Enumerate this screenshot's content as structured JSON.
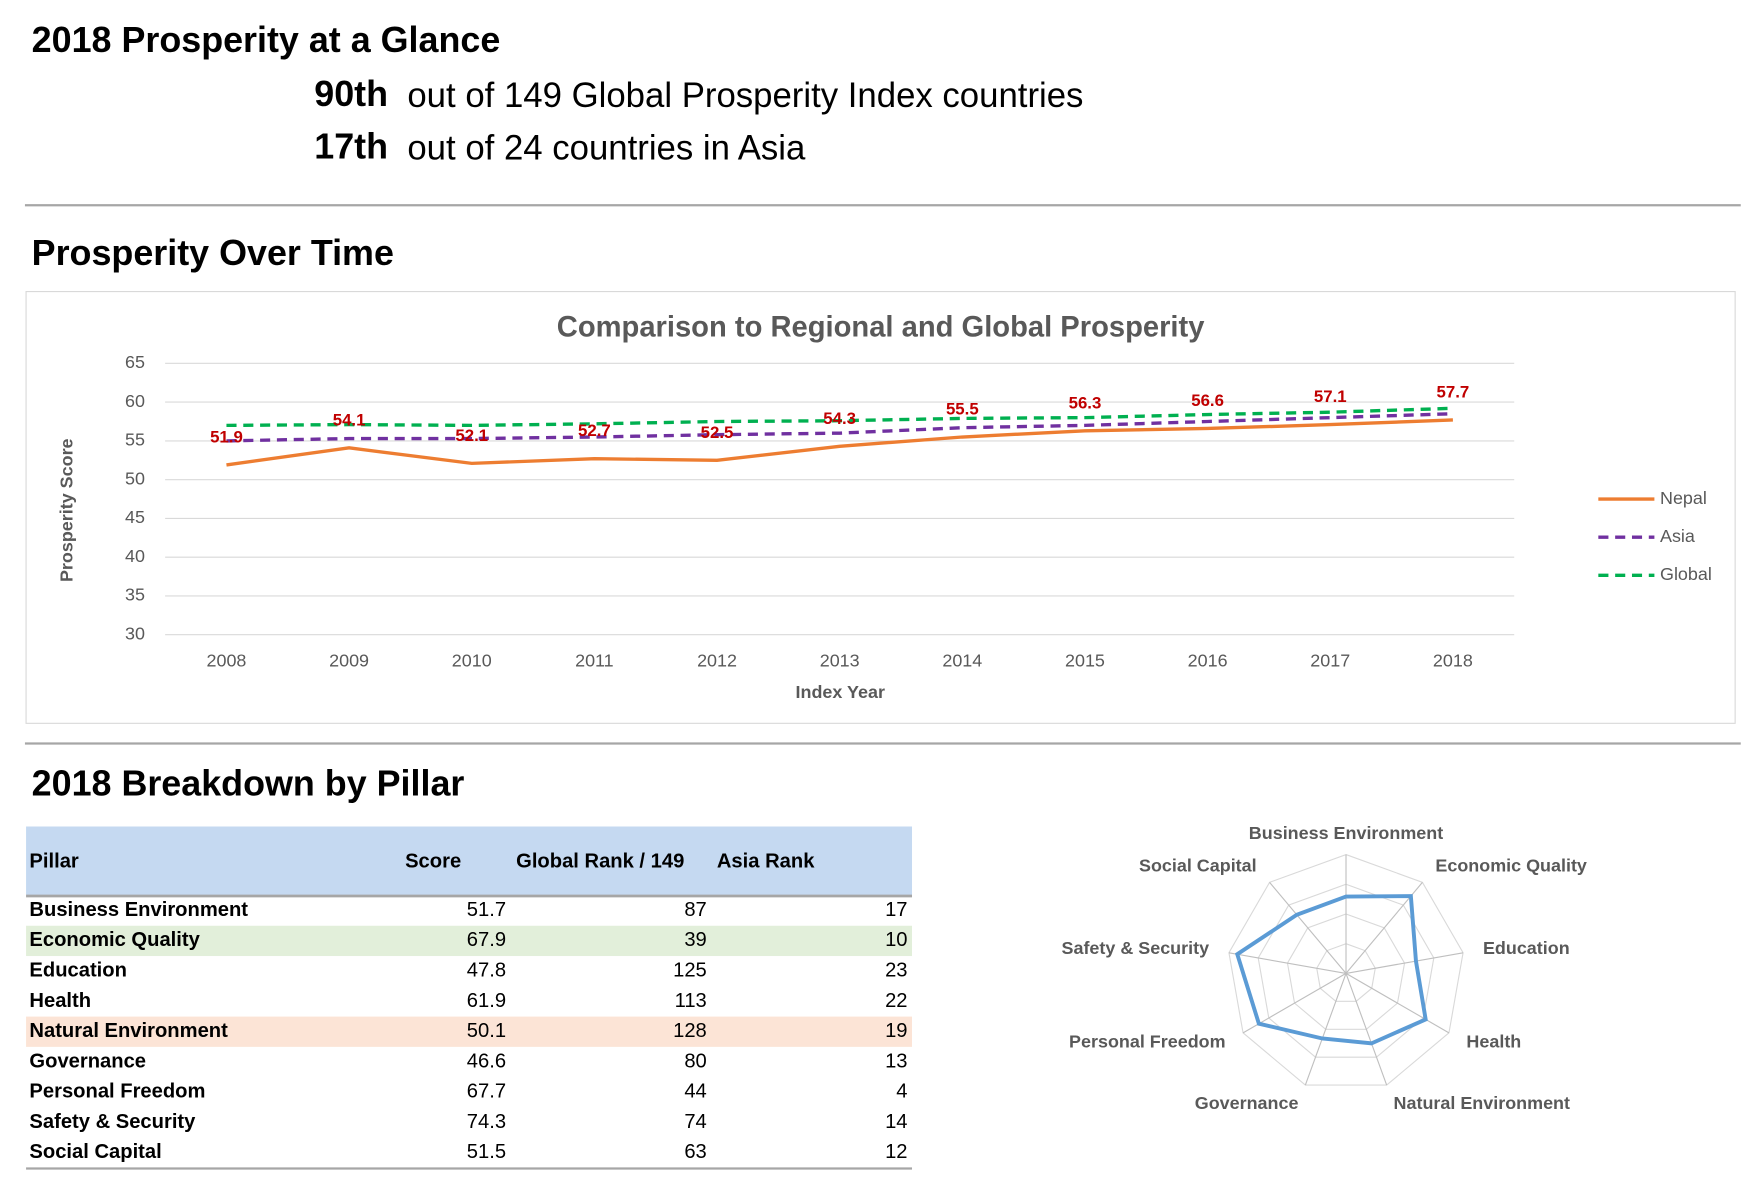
{
  "header": {
    "title": "2018 Prosperity at a Glance",
    "ranks": [
      {
        "rank": "90th",
        "text": "out of 149 Global Prosperity Index countries"
      },
      {
        "rank": "17th",
        "text": "out of 24 countries in Asia"
      }
    ]
  },
  "sections": [
    "Prosperity Over Time",
    "2018 Breakdown by Pillar"
  ],
  "table": {
    "columns": [
      "Pillar",
      "Score",
      "Global Rank / 149",
      "Asia Rank"
    ],
    "rows": [
      [
        "Business Environment",
        51.7,
        87,
        17
      ],
      [
        "Economic Quality",
        67.9,
        39,
        10
      ],
      [
        "Education",
        47.8,
        125,
        23
      ],
      [
        "Health",
        61.9,
        113,
        22
      ],
      [
        "Natural Environment",
        50.1,
        128,
        19
      ],
      [
        "Governance",
        46.6,
        80,
        13
      ],
      [
        "Personal Freedom",
        67.7,
        44,
        4
      ],
      [
        "Safety & Security",
        74.3,
        74,
        14
      ],
      [
        "Social Capital",
        51.5,
        63,
        12
      ]
    ],
    "header_color": "#c5d9f1",
    "highlighted_rows": [
      {
        "row": 1,
        "color": "#e2efda"
      },
      {
        "row": 4,
        "color": "#fce4d6"
      }
    ]
  },
  "chart_data": [
    {
      "type": "line",
      "title": "Comparison to Regional and Global Prosperity",
      "x_label": "Index Year",
      "y_label": "Prosperity Score",
      "categories": [
        "2008",
        "2009",
        "2010",
        "2011",
        "2012",
        "2013",
        "2014",
        "2015",
        "2016",
        "2017",
        "2018"
      ],
      "series": [
        {
          "name": "Nepal",
          "color": "#ed7d31",
          "dashed": false,
          "data_labels": true,
          "values": [
            51.9,
            54.1,
            52.1,
            52.7,
            52.5,
            54.3,
            55.5,
            56.3,
            56.6,
            57.1,
            57.7
          ]
        },
        {
          "name": "Asia",
          "color": "#7030a0",
          "dashed": true,
          "data_labels": false,
          "values": [
            55.0,
            55.3,
            55.3,
            55.5,
            55.8,
            56.0,
            56.7,
            57.0,
            57.5,
            58.0,
            58.5
          ]
        },
        {
          "name": "Global",
          "color": "#00b050",
          "dashed": true,
          "data_labels": false,
          "values": [
            57.0,
            57.1,
            57.0,
            57.2,
            57.5,
            57.6,
            57.9,
            58.0,
            58.4,
            58.7,
            59.2
          ]
        }
      ],
      "ylim": [
        30,
        65
      ],
      "yticks": [
        30,
        35,
        40,
        45,
        50,
        55,
        60,
        65
      ],
      "grid": true,
      "legend": "right"
    },
    {
      "type": "radar",
      "categories": [
        "Business Environment",
        "Economic Quality",
        "Education",
        "Health",
        "Natural Environment",
        "Governance",
        "Personal Freedom",
        "Safety & Security",
        "Social Capital"
      ],
      "values": [
        51.7,
        67.9,
        47.8,
        61.9,
        50.1,
        46.6,
        67.7,
        74.3,
        51.5
      ],
      "color": "#5b9bd5",
      "rlim": [
        0,
        80
      ],
      "rticks": [
        20,
        40,
        60,
        80
      ]
    }
  ]
}
